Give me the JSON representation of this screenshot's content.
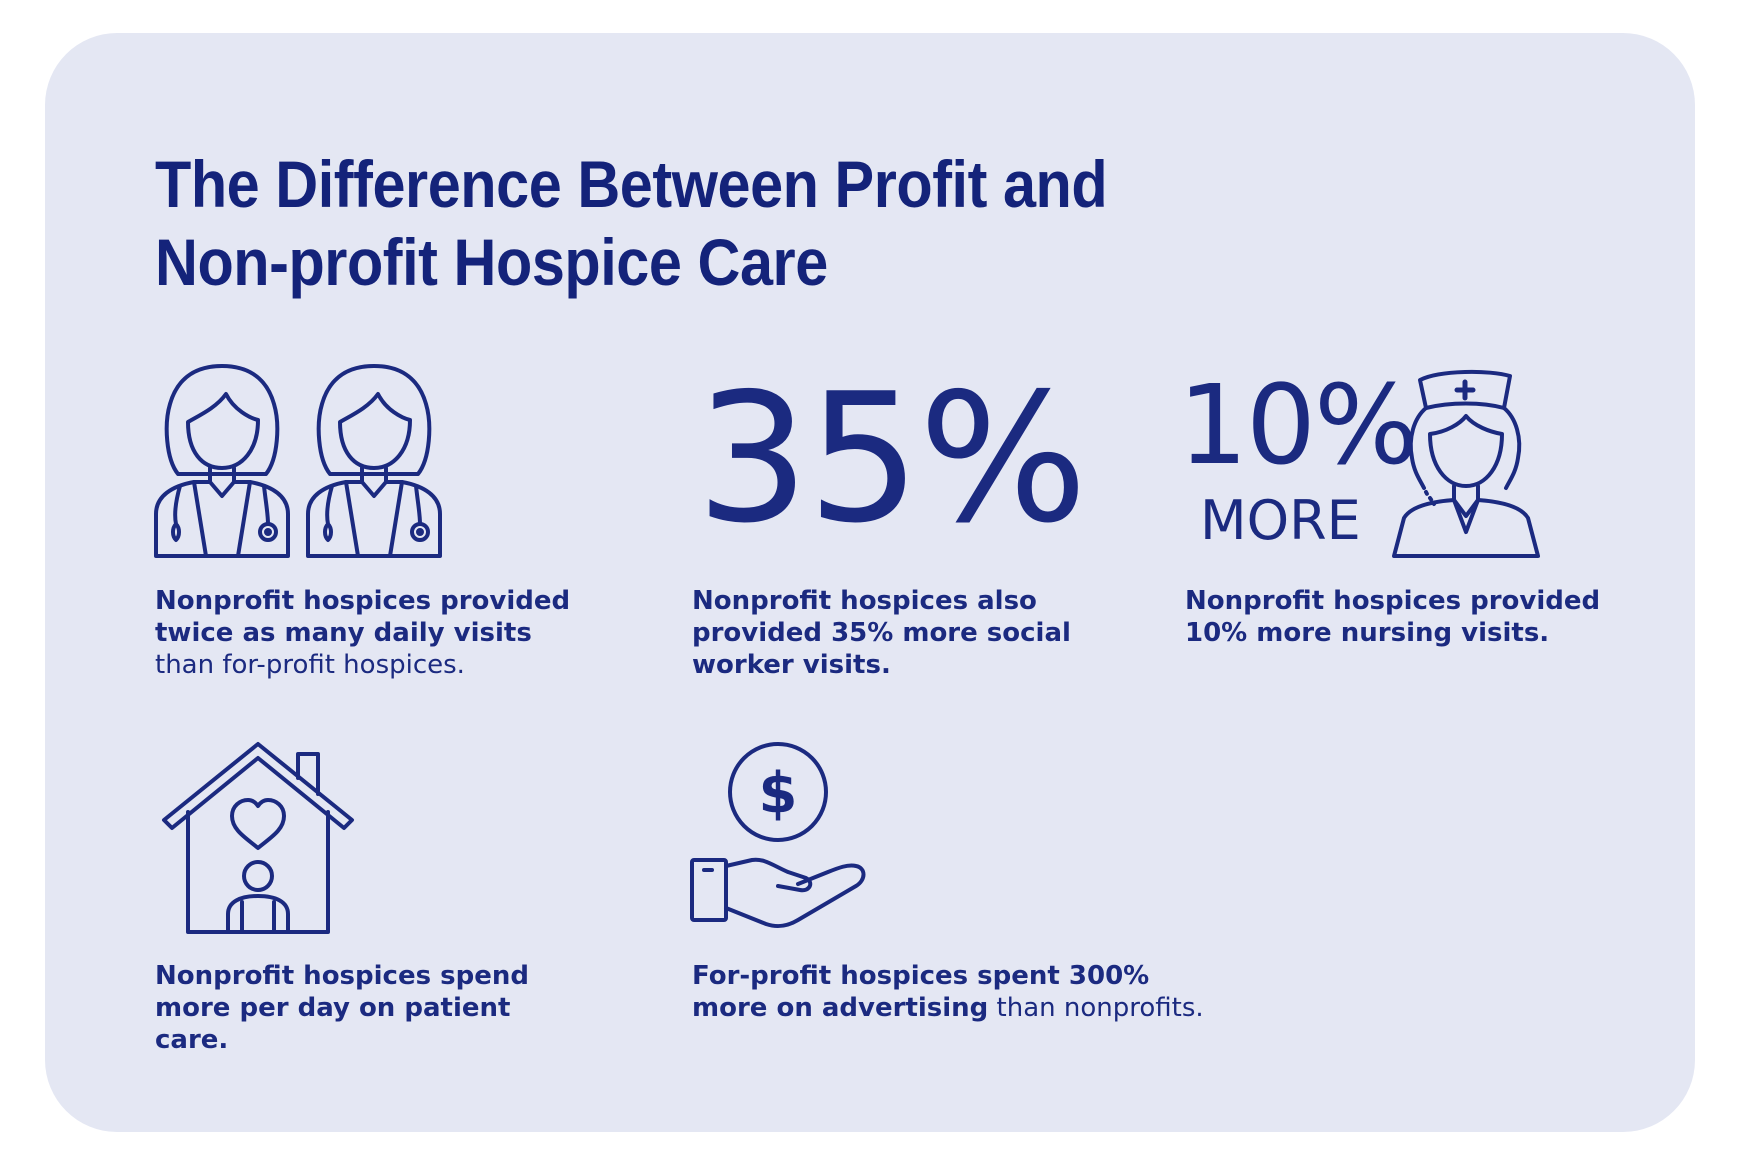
{
  "colors": {
    "card_background": "#e4e7f3",
    "ink": "#1b2a80",
    "title": "#14237a"
  },
  "title": {
    "line1": "The Difference Between Profit and",
    "line2": "Non-profit Hospice Care"
  },
  "items": [
    {
      "icon": "two-female-doctors-icon",
      "caption_bold": "Nonprofit hospices provided twice as many daily visits",
      "caption_regular": " than for-profit hospices."
    },
    {
      "stat": "35%",
      "caption_bold": "Nonprofit hospices also provided 35% more social worker visits.",
      "caption_regular": ""
    },
    {
      "stat": "10%",
      "stat_sub": "MORE",
      "icon": "nurse-icon",
      "caption_bold": "Nonprofit hospices provided 10% more nursing visits.",
      "caption_regular": ""
    },
    {
      "icon": "house-heart-person-icon",
      "caption_bold": "Nonprofit hospices spend more per day on patient care.",
      "caption_regular": ""
    },
    {
      "icon": "hand-dollar-coin-icon",
      "caption_bold": "For-profit hospices spent 300% more on advertising",
      "caption_regular": " than nonprofits."
    }
  ]
}
